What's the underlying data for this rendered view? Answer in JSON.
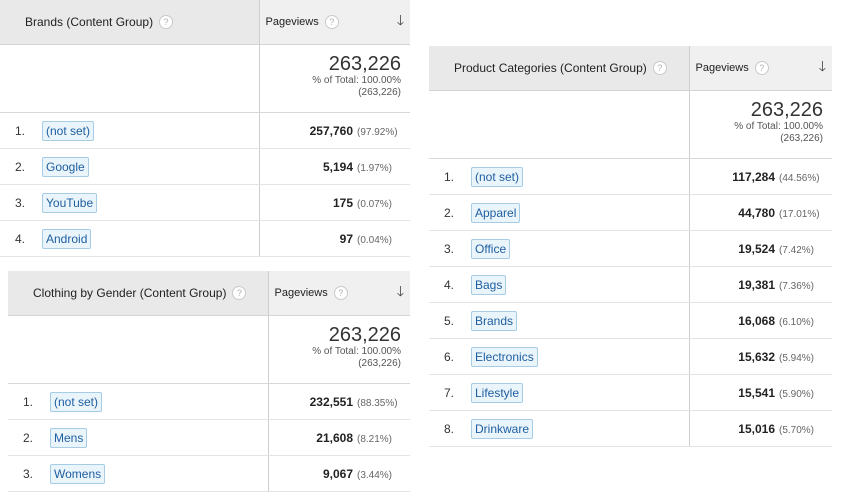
{
  "panels": [
    {
      "dimension_header": "Brands (Content Group)",
      "metric_header": "Pageviews",
      "total_value": "263,226",
      "total_pct": "% of Total: 100.00%",
      "total_abs": "(263,226)",
      "rows": [
        {
          "num": "1.",
          "label": "(not set)",
          "value": "257,760",
          "pct": "(97.92%)"
        },
        {
          "num": "2.",
          "label": "Google",
          "value": "5,194",
          "pct": "(1.97%)"
        },
        {
          "num": "3.",
          "label": "YouTube",
          "value": "175",
          "pct": "(0.07%)"
        },
        {
          "num": "4.",
          "label": "Android",
          "value": "97",
          "pct": "(0.04%)"
        }
      ]
    },
    {
      "dimension_header": "Clothing by Gender (Content Group)",
      "metric_header": "Pageviews",
      "total_value": "263,226",
      "total_pct": "% of Total: 100.00%",
      "total_abs": "(263,226)",
      "rows": [
        {
          "num": "1.",
          "label": "(not set)",
          "value": "232,551",
          "pct": "(88.35%)"
        },
        {
          "num": "2.",
          "label": "Mens",
          "value": "21,608",
          "pct": "(8.21%)"
        },
        {
          "num": "3.",
          "label": "Womens",
          "value": "9,067",
          "pct": "(3.44%)"
        }
      ]
    },
    {
      "dimension_header": "Product Categories (Content Group)",
      "metric_header": "Pageviews",
      "total_value": "263,226",
      "total_pct": "% of Total: 100.00%",
      "total_abs": "(263,226)",
      "rows": [
        {
          "num": "1.",
          "label": "(not set)",
          "value": "117,284",
          "pct": "(44.56%)"
        },
        {
          "num": "2.",
          "label": "Apparel",
          "value": "44,780",
          "pct": "(17.01%)"
        },
        {
          "num": "3.",
          "label": "Office",
          "value": "19,524",
          "pct": "(7.42%)"
        },
        {
          "num": "4.",
          "label": "Bags",
          "value": "19,381",
          "pct": "(7.36%)"
        },
        {
          "num": "5.",
          "label": "Brands",
          "value": "16,068",
          "pct": "(6.10%)"
        },
        {
          "num": "6.",
          "label": "Electronics",
          "value": "15,632",
          "pct": "(5.94%)"
        },
        {
          "num": "7.",
          "label": "Lifestyle",
          "value": "15,541",
          "pct": "(5.90%)"
        },
        {
          "num": "8.",
          "label": "Drinkware",
          "value": "15,016",
          "pct": "(5.70%)"
        }
      ]
    }
  ],
  "icons": {
    "help": "help-icon",
    "sort": "sort-descending-arrow-icon"
  },
  "help_glyph": "?",
  "sort_glyph": "🡓"
}
